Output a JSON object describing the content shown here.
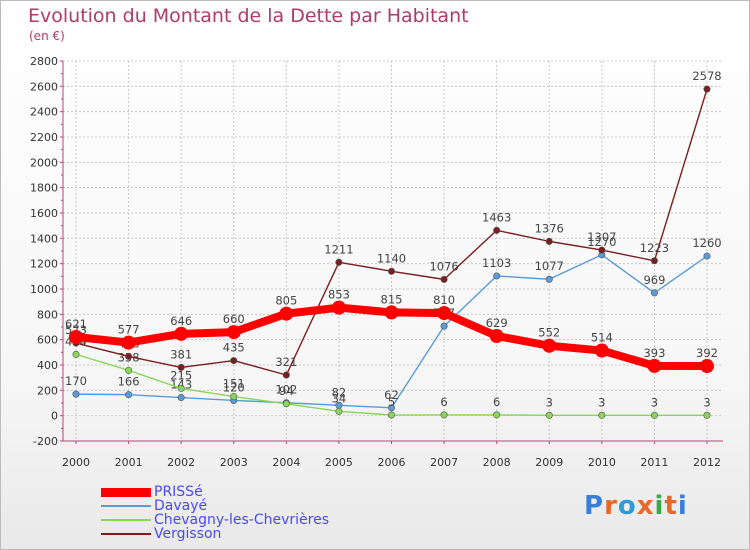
{
  "title": "Evolution du Montant de la Dette par Habitant",
  "subtitle": "(en €)",
  "logo": {
    "letters": [
      "P",
      "r",
      "o",
      "x",
      "i",
      "t",
      "i"
    ],
    "colors": [
      "#3a7fd6",
      "#e8682a",
      "#2e9ad8",
      "#e8682a",
      "#3aa84a",
      "#e8682a",
      "#3a7fd6"
    ]
  },
  "chart_data": {
    "type": "line",
    "x": [
      "2000",
      "2001",
      "2002",
      "2003",
      "2004",
      "2005",
      "2006",
      "2007",
      "2008",
      "2009",
      "2010",
      "2011",
      "2012"
    ],
    "ylim": [
      -200,
      2800
    ],
    "yticks": [
      "-200",
      "0",
      "200",
      "400",
      "600",
      "800",
      "1000",
      "1200",
      "1400",
      "1600",
      "1800",
      "2000",
      "2200",
      "2400",
      "2600",
      "2800"
    ],
    "grid": true,
    "legend_position": "bottom-left",
    "series": [
      {
        "name": "PRISSé",
        "color": "#ff0000",
        "values": [
          621,
          577,
          646,
          660,
          805,
          853,
          815,
          810,
          629,
          552,
          514,
          393,
          392
        ],
        "labels": [
          "621",
          "577",
          "646",
          "660",
          "805",
          "853",
          "815",
          "810",
          "629",
          "552",
          "514",
          "393",
          "392"
        ]
      },
      {
        "name": "Davayé",
        "color": "#5a9ad6",
        "values": [
          170,
          166,
          143,
          120,
          102,
          82,
          62,
          707,
          1103,
          1077,
          1270,
          969,
          1260
        ],
        "labels": [
          "170",
          "166",
          "143",
          "120",
          "102",
          "82",
          "62",
          "707",
          "1103",
          "1077",
          "1270",
          "969",
          "1260"
        ]
      },
      {
        "name": "Chevagny-les-Chevrières",
        "color": "#88d65a",
        "values": [
          484,
          358,
          215,
          151,
          94,
          34,
          5,
          6,
          6,
          3,
          3,
          3,
          3
        ],
        "labels": [
          "484",
          "358",
          "215",
          "151",
          "94",
          "34",
          "5",
          "6",
          "6",
          "3",
          "3",
          "3",
          "3"
        ]
      },
      {
        "name": "Vergisson",
        "color": "#7a1e1e",
        "values": [
          573,
          468,
          381,
          435,
          321,
          1211,
          1140,
          1076,
          1463,
          1376,
          1307,
          1223,
          2578
        ],
        "labels": [
          "573",
          "468",
          "381",
          "435",
          "321",
          "1211",
          "1140",
          "1076",
          "1463",
          "1376",
          "1307",
          "1223",
          "2578"
        ]
      }
    ]
  }
}
